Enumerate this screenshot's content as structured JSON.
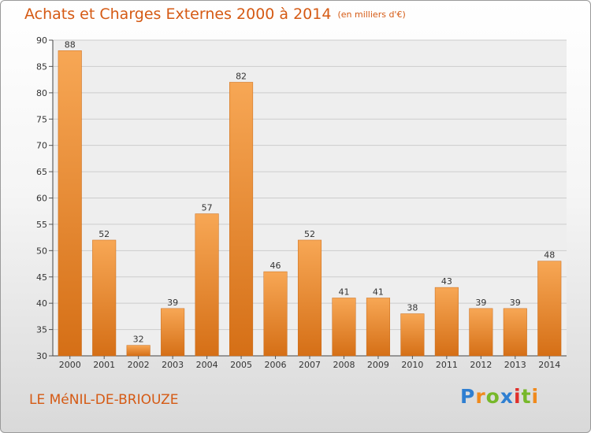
{
  "header": {
    "title": "Achats et Charges Externes 2000 à 2014",
    "subtitle": "(en milliers d'€)"
  },
  "footer": {
    "commune": "LE MéNIL-DE-BRIOUZE",
    "logo": "Proxiti"
  },
  "colors": {
    "title": "#d55a14",
    "bar_light": "#f7a755",
    "bar_dark": "#d56f16",
    "logo_letters": [
      "#2f7fd1",
      "#f08a1c",
      "#77b82a",
      "#2f7fd1",
      "#e0302b",
      "#77b82a",
      "#f08a1c"
    ]
  },
  "chart_data": {
    "type": "bar",
    "title": "Achats et Charges Externes 2000 à 2014",
    "subtitle": "(en milliers d'€)",
    "xlabel": "",
    "ylabel": "",
    "categories": [
      "2000",
      "2001",
      "2002",
      "2003",
      "2004",
      "2005",
      "2006",
      "2007",
      "2008",
      "2009",
      "2010",
      "2011",
      "2012",
      "2013",
      "2014"
    ],
    "values": [
      88,
      52,
      32,
      39,
      57,
      82,
      46,
      52,
      41,
      41,
      38,
      43,
      39,
      39,
      48
    ],
    "ylim": [
      30,
      90
    ],
    "yticks": [
      30,
      35,
      40,
      45,
      50,
      55,
      60,
      65,
      70,
      75,
      80,
      85,
      90
    ],
    "grid": true,
    "legend": "none"
  }
}
